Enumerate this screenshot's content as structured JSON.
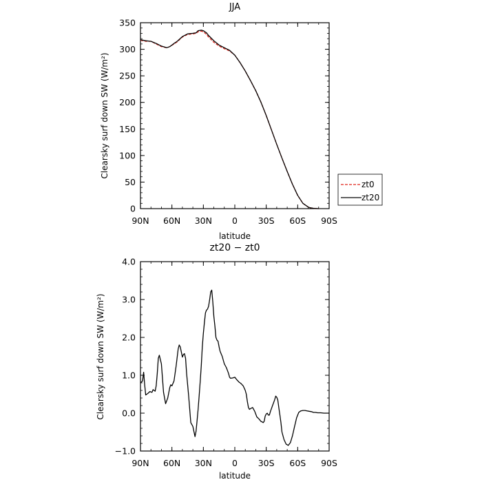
{
  "chart_data": [
    {
      "type": "line",
      "title": "JJA",
      "xlabel": "latitude",
      "ylabel": "Clearsky surf down SW (W/m²)",
      "x_ticks": [
        "90N",
        "60N",
        "30N",
        "0",
        "30S",
        "60S",
        "90S"
      ],
      "y_ticks": [
        "0",
        "50",
        "100",
        "150",
        "200",
        "250",
        "300",
        "350"
      ],
      "xlim": [
        90,
        -90
      ],
      "ylim": [
        0,
        350
      ],
      "grid": false,
      "legend_position": "right",
      "series": [
        {
          "name": "zt0",
          "color": "#e0281e",
          "dash": "dashed",
          "x": [
            90,
            85,
            80,
            75,
            70,
            65,
            62,
            58,
            55,
            50,
            45,
            40,
            37,
            35,
            32,
            30,
            27,
            25,
            20,
            15,
            10,
            5,
            0,
            -5,
            -10,
            -15,
            -20,
            -25,
            -30,
            -35,
            -40,
            -45,
            -50,
            -55,
            -60,
            -65,
            -70,
            -72,
            -75,
            -78,
            -80
          ],
          "values": [
            317,
            315,
            315,
            310,
            305,
            303,
            305,
            310,
            314,
            323,
            328,
            329,
            330,
            333,
            334,
            333,
            328,
            323,
            313,
            306,
            301,
            297,
            289,
            275,
            259,
            241,
            222,
            200,
            175,
            148,
            121,
            95,
            70,
            46,
            25,
            10,
            3,
            1.5,
            0.6,
            0.2,
            0
          ]
        },
        {
          "name": "zt20",
          "color": "#000000",
          "dash": "solid",
          "x": [
            90,
            85,
            80,
            75,
            70,
            65,
            62,
            58,
            55,
            50,
            45,
            40,
            37,
            35,
            32,
            30,
            27,
            25,
            20,
            15,
            10,
            5,
            0,
            -5,
            -10,
            -15,
            -20,
            -25,
            -30,
            -35,
            -40,
            -45,
            -50,
            -55,
            -60,
            -65,
            -70,
            -72,
            -75,
            -78,
            -80
          ],
          "values": [
            318,
            316,
            315,
            311,
            306,
            303,
            305,
            311,
            315,
            324,
            329,
            330,
            331,
            335,
            336,
            335,
            331,
            326,
            316,
            308,
            303,
            298,
            289,
            275,
            259,
            241,
            222,
            200,
            175,
            148,
            121,
            95,
            70,
            46,
            25,
            10,
            3,
            1.5,
            0.6,
            0.2,
            0
          ]
        }
      ]
    },
    {
      "type": "line",
      "title": "zt20 − zt0",
      "xlabel": "latitude",
      "ylabel": "Clearsky surf down SW (W/m²)",
      "x_ticks": [
        "90N",
        "60N",
        "30N",
        "0",
        "30S",
        "60S",
        "90S"
      ],
      "y_ticks": [
        "−1.0",
        "0.0",
        "1.0",
        "2.0",
        "3.0",
        "4.0"
      ],
      "xlim": [
        90,
        -90
      ],
      "ylim": [
        -1,
        4
      ],
      "grid": false,
      "series": [
        {
          "color": "#000000",
          "dash": "solid",
          "x": [
            90,
            88,
            87,
            86,
            85,
            83,
            81,
            79,
            78,
            76,
            75,
            74,
            73,
            72,
            70,
            68,
            66,
            64,
            62,
            61,
            60,
            58,
            56,
            54,
            53,
            52,
            50,
            49,
            48,
            47,
            46,
            44,
            42,
            40,
            38,
            37,
            36,
            35,
            34,
            33,
            32,
            31,
            30,
            29,
            28,
            27,
            26,
            25,
            24,
            23,
            22,
            21,
            20,
            19,
            18,
            17,
            16,
            15,
            14,
            12,
            10,
            8,
            6,
            5,
            4,
            2,
            0,
            -2,
            -4,
            -6,
            -8,
            -10,
            -11,
            -12,
            -13,
            -14,
            -15,
            -17,
            -19,
            -21,
            -23,
            -25,
            -26,
            -27,
            -28,
            -29,
            -30,
            -31,
            -32,
            -33,
            -34,
            -36,
            -38,
            -39,
            -40,
            -41,
            -42,
            -43,
            -44,
            -45,
            -47,
            -49,
            -51,
            -53,
            -55,
            -57,
            -59,
            -61,
            -63,
            -65,
            -67,
            -69,
            -71,
            -73,
            -75,
            -77,
            -79,
            -82,
            -85,
            -90
          ],
          "values": [
            0.8,
            0.85,
            1.08,
            0.75,
            0.48,
            0.52,
            0.57,
            0.55,
            0.62,
            0.58,
            0.72,
            1.05,
            1.45,
            1.53,
            1.3,
            0.55,
            0.25,
            0.4,
            0.68,
            0.75,
            0.72,
            0.85,
            1.25,
            1.7,
            1.8,
            1.75,
            1.48,
            1.55,
            1.57,
            1.45,
            1.05,
            0.45,
            -0.25,
            -0.35,
            -0.62,
            -0.48,
            -0.2,
            0.1,
            0.45,
            0.85,
            1.25,
            1.75,
            2.1,
            2.4,
            2.65,
            2.72,
            2.75,
            2.82,
            3.0,
            3.2,
            3.25,
            2.95,
            2.55,
            2.3,
            2.0,
            1.93,
            1.9,
            1.75,
            1.63,
            1.5,
            1.3,
            1.2,
            1.05,
            0.95,
            0.92,
            0.93,
            0.95,
            0.88,
            0.82,
            0.78,
            0.72,
            0.6,
            0.5,
            0.3,
            0.15,
            0.1,
            0.12,
            0.15,
            0.05,
            -0.1,
            -0.15,
            -0.22,
            -0.23,
            -0.25,
            -0.22,
            -0.08,
            -0.02,
            0.0,
            -0.05,
            -0.05,
            0.05,
            0.2,
            0.35,
            0.45,
            0.42,
            0.35,
            0.15,
            -0.05,
            -0.25,
            -0.5,
            -0.7,
            -0.82,
            -0.85,
            -0.78,
            -0.6,
            -0.35,
            -0.12,
            0.02,
            0.06,
            0.07,
            0.07,
            0.06,
            0.05,
            0.04,
            0.02,
            0.02,
            0.01,
            0.01,
            0.0,
            0.0
          ]
        }
      ]
    }
  ]
}
